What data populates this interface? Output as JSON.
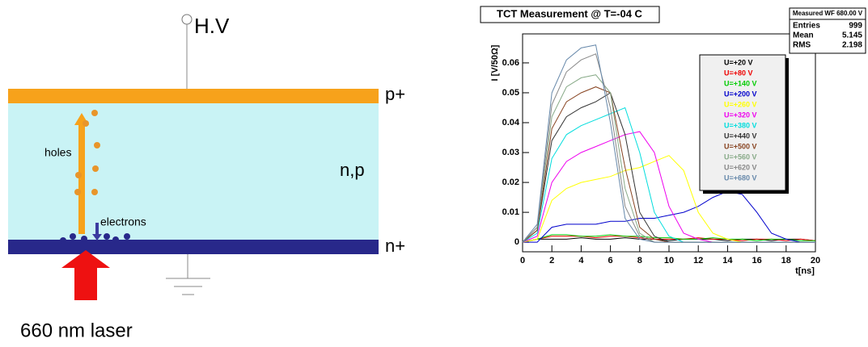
{
  "diagram": {
    "hv": "H.V",
    "p_plus": "p+",
    "n_p": "n,p",
    "n_plus": "n+",
    "holes": "holes",
    "electrons": "electrons",
    "laser": "660 nm laser"
  },
  "chart_data": {
    "type": "line",
    "title": "TCT Measurement @ T=-04 C",
    "x_label": "t[ns]",
    "y_label": "I [V/50Ω]",
    "x": [
      0,
      1,
      2,
      3,
      4,
      5,
      6,
      7,
      8,
      9,
      10,
      11,
      12,
      13,
      14,
      15,
      16,
      17,
      18,
      19,
      20
    ],
    "xlim": [
      0,
      20
    ],
    "xticks": [
      0,
      2,
      4,
      6,
      8,
      10,
      12,
      14,
      16,
      18,
      20
    ],
    "ylim": [
      -0.0032,
      0.0697
    ],
    "yticks": [
      0,
      0.01,
      0.02,
      0.03,
      0.04,
      0.05,
      0.06
    ],
    "series": [
      {
        "name": "U=+20 V",
        "color": "#000000",
        "values": [
          0,
          0.001,
          0.001,
          0.001,
          0.0015,
          0.001,
          0.001,
          0.0015,
          0.001,
          0.001,
          0.0005,
          0.001,
          0.001,
          0.001,
          0.0005,
          0.001,
          0.001,
          0.0005,
          0.001,
          0.001,
          0.0005
        ]
      },
      {
        "name": "U=+80 V",
        "color": "#ee0000",
        "values": [
          0,
          0.001,
          0.002,
          0.002,
          0.002,
          0.0015,
          0.002,
          0.002,
          0.0015,
          0.001,
          0.001,
          0.001,
          0.0015,
          0.001,
          0.001,
          0.0005,
          0.001,
          0.001,
          0.0005,
          0.001,
          0.0005
        ]
      },
      {
        "name": "U=+140 V",
        "color": "#00cc00",
        "values": [
          0,
          0.001,
          0.0025,
          0.0025,
          0.002,
          0.002,
          0.0025,
          0.002,
          0.002,
          0.0015,
          0.0015,
          0.001,
          0.001,
          0.0015,
          0.001,
          0.001,
          0.0005,
          0.001,
          0.001,
          0.0005,
          0.0005
        ]
      },
      {
        "name": "U=+200 V",
        "color": "#0000cc",
        "values": [
          0,
          0,
          0.005,
          0.006,
          0.006,
          0.006,
          0.007,
          0.007,
          0.008,
          0.008,
          0.009,
          0.01,
          0.012,
          0.015,
          0.017,
          0.016,
          0.01,
          0.003,
          0.001,
          0,
          0
        ]
      },
      {
        "name": "U=+260 V",
        "color": "#ffff00",
        "values": [
          0,
          0.001,
          0.014,
          0.018,
          0.02,
          0.021,
          0.022,
          0.024,
          0.025,
          0.027,
          0.029,
          0.024,
          0.01,
          0.003,
          0.001,
          0,
          0,
          0,
          0,
          0,
          0
        ]
      },
      {
        "name": "U=+320 V",
        "color": "#ee00ee",
        "values": [
          0,
          0.002,
          0.02,
          0.027,
          0.03,
          0.032,
          0.034,
          0.036,
          0.037,
          0.03,
          0.012,
          0.003,
          0.001,
          0,
          0,
          0,
          0,
          0,
          0,
          0,
          0
        ]
      },
      {
        "name": "U=+380 V",
        "color": "#00dddd",
        "values": [
          0,
          0.003,
          0.028,
          0.036,
          0.039,
          0.041,
          0.043,
          0.045,
          0.03,
          0.01,
          0.002,
          0,
          0,
          0,
          0,
          0,
          0,
          0,
          0,
          0,
          0
        ]
      },
      {
        "name": "U=+440 V",
        "color": "#333333",
        "values": [
          0,
          0.004,
          0.034,
          0.042,
          0.045,
          0.047,
          0.05,
          0.036,
          0.01,
          0.002,
          0,
          0,
          0,
          0,
          0,
          0,
          0,
          0,
          0,
          0,
          0
        ]
      },
      {
        "name": "U=+500 V",
        "color": "#884422",
        "values": [
          0,
          0.004,
          0.038,
          0.047,
          0.05,
          0.052,
          0.05,
          0.025,
          0.005,
          0.001,
          0,
          0,
          0,
          0,
          0,
          0,
          0,
          0,
          0,
          0,
          0
        ]
      },
      {
        "name": "U=+560 V",
        "color": "#88aa88",
        "values": [
          0,
          0.005,
          0.042,
          0.052,
          0.055,
          0.056,
          0.05,
          0.018,
          0.003,
          0,
          0,
          0,
          0,
          0,
          0,
          0,
          0,
          0,
          0,
          0,
          0
        ]
      },
      {
        "name": "U=+620 V",
        "color": "#888888",
        "values": [
          0,
          0.005,
          0.046,
          0.057,
          0.061,
          0.063,
          0.045,
          0.012,
          0.002,
          0,
          0,
          0,
          0,
          0,
          0,
          0,
          0,
          0,
          0,
          0,
          0
        ]
      },
      {
        "name": "U=+680 V",
        "color": "#6688aa",
        "values": [
          0,
          0.006,
          0.05,
          0.061,
          0.065,
          0.066,
          0.04,
          0.008,
          0.001,
          0,
          0,
          0,
          0,
          0,
          0,
          0,
          0,
          0,
          0,
          0,
          0
        ]
      }
    ],
    "stats": {
      "title": "Measured WF 680.00 V",
      "rows": [
        [
          "Entries",
          999
        ],
        [
          "Mean",
          5.145
        ],
        [
          "RMS",
          2.198
        ]
      ]
    }
  }
}
